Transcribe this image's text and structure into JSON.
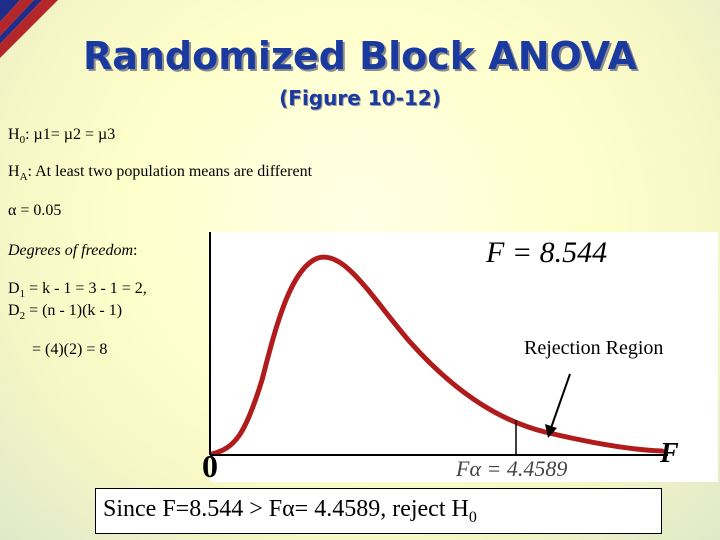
{
  "slide": {
    "title": "Randomized Block ANOVA",
    "subtitle": "(Figure 10-12)",
    "colors": {
      "title": "#1a3aa0",
      "curve": "#b01c1c",
      "corner_red": "#b3262a",
      "corner_blue": "#1f2d8a"
    }
  },
  "hypotheses": {
    "h0": {
      "prefix": "H",
      "sub": "0",
      "text": ": µ1= µ2 = µ3"
    },
    "ha": {
      "prefix": "H",
      "sub": "A",
      "text": ": At least two population means are different"
    },
    "alpha": "α = 0.05"
  },
  "dof": {
    "heading": "Degrees of freedom",
    "colon": ":",
    "d1": {
      "prefix": "D",
      "sub": "1",
      "text": " = k - 1 = 3 - 1 = 2,"
    },
    "d2": {
      "prefix": "D",
      "sub": "2",
      "text": " = (n - 1)(k - 1)"
    },
    "d2_result": "= (4)(2) = 8"
  },
  "figure": {
    "f_stat": "F = 8.544",
    "rejection_label": "Rejection Region",
    "origin_label": "0",
    "axis_label": "F",
    "f_alpha_label": "Fα = 4.4589"
  },
  "conclusion": {
    "main": "Since F=8.544 > Fα= 4.4589, reject H",
    "sub": "0"
  }
}
